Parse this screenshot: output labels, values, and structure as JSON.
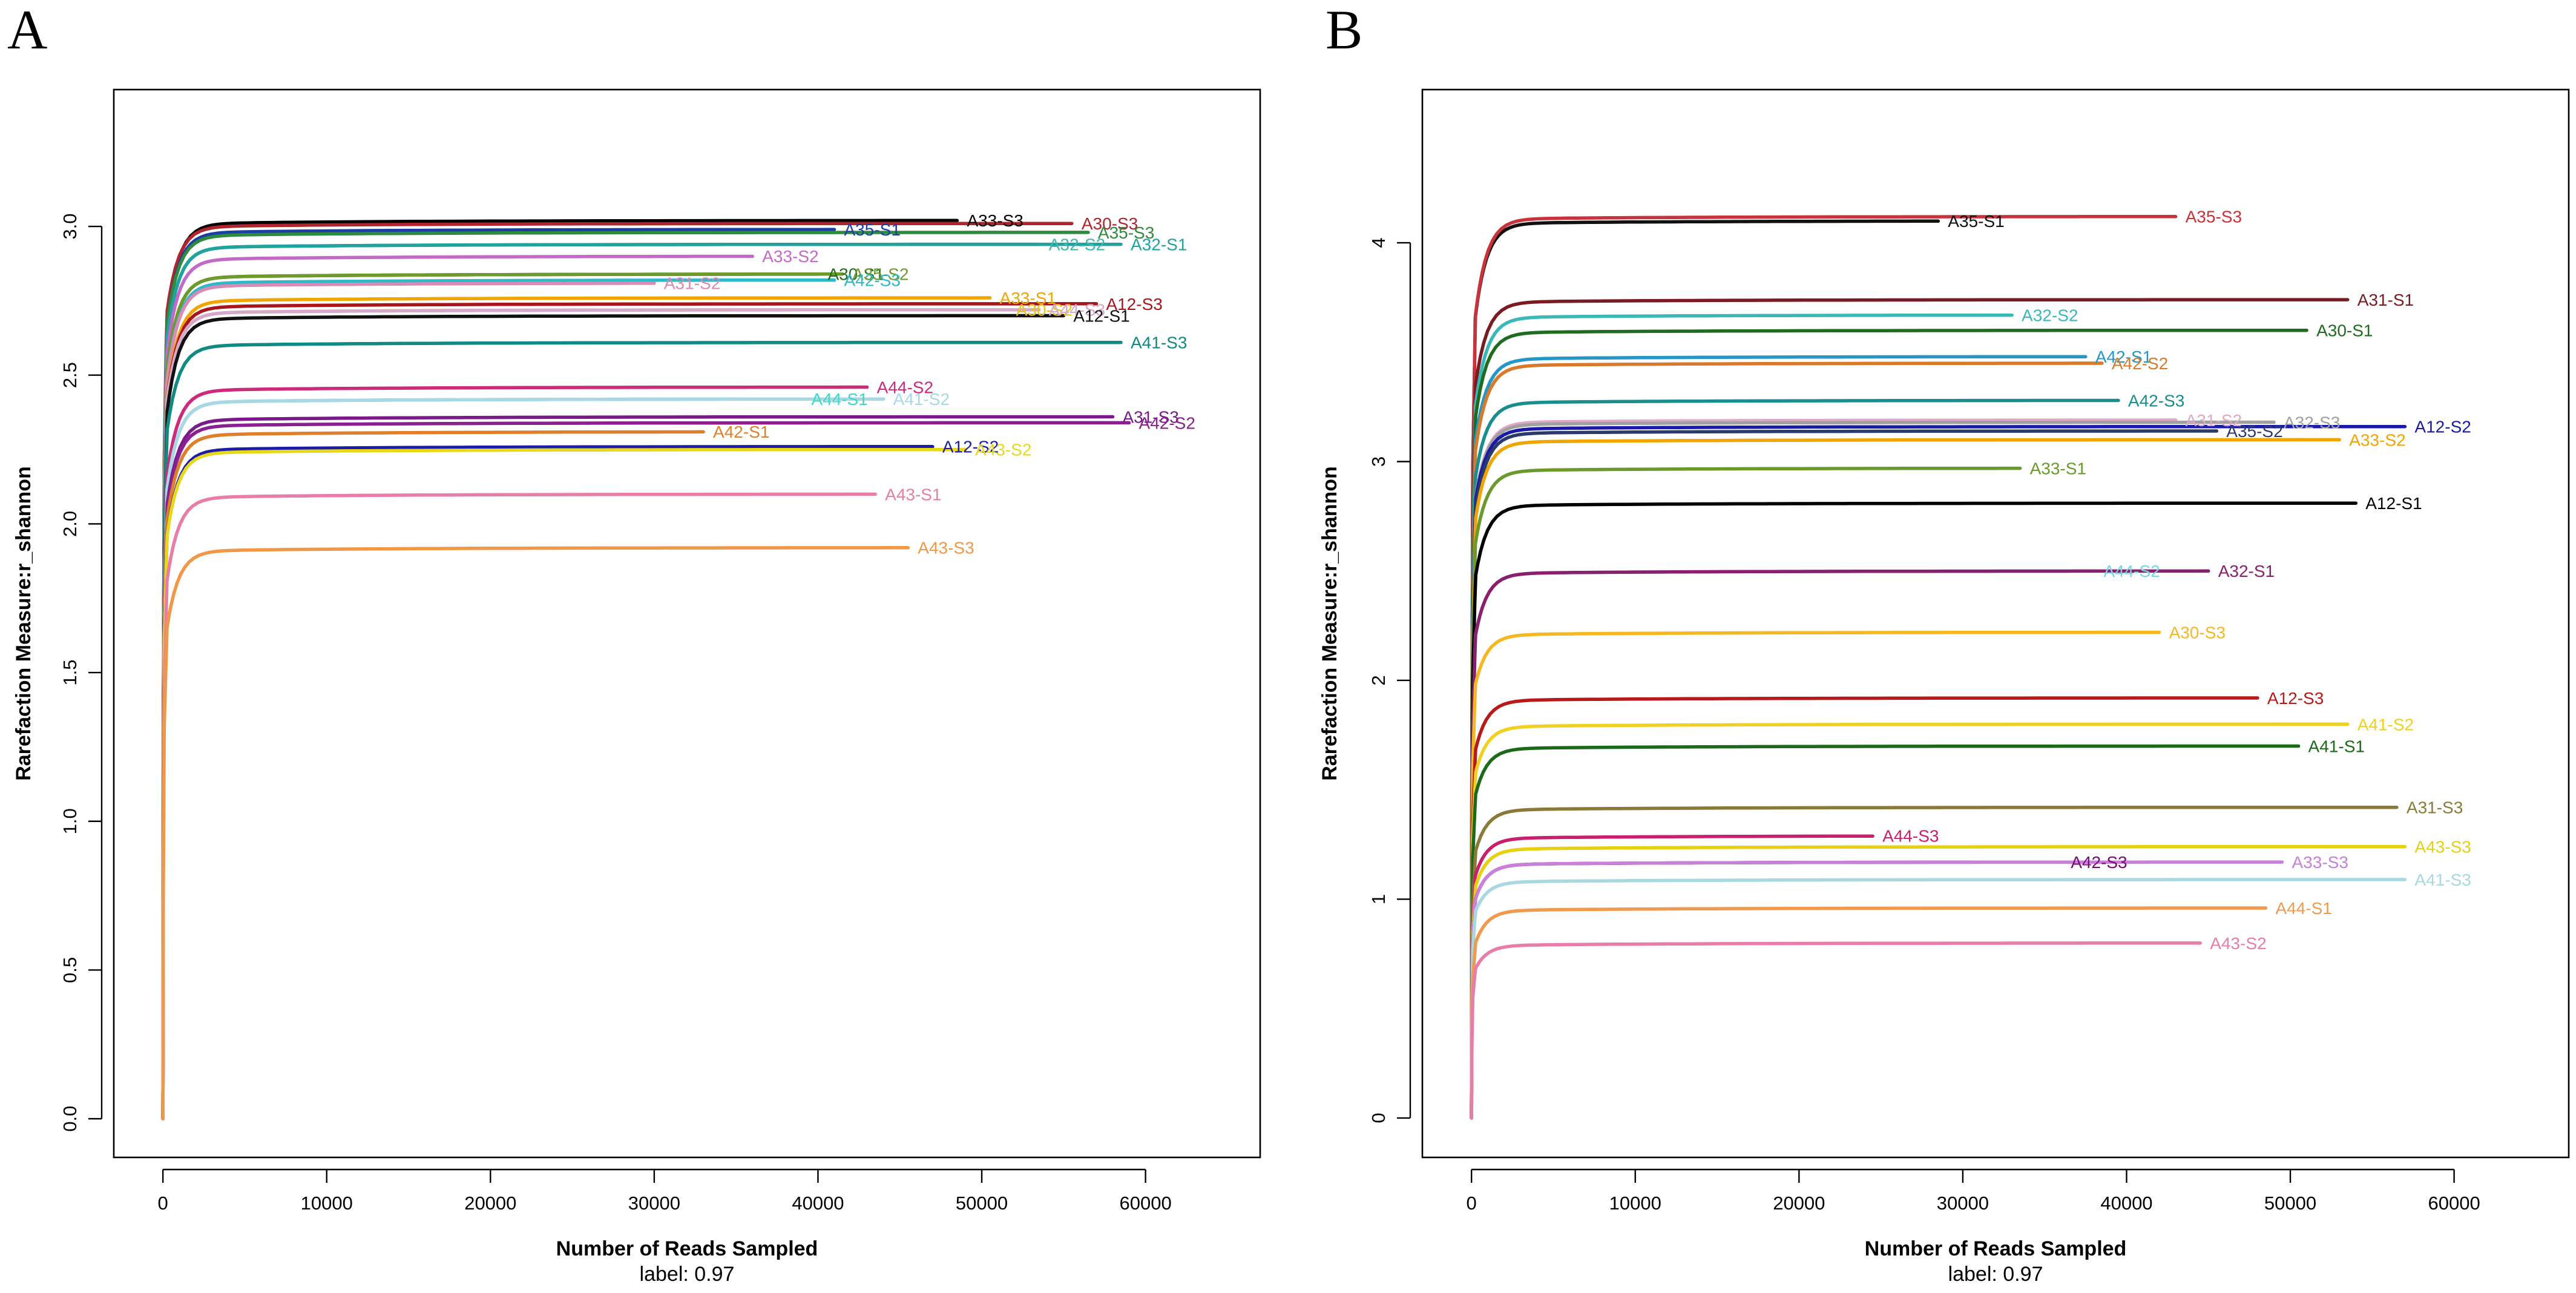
{
  "figure": {
    "panels": [
      {
        "letter": "A",
        "chart_data": {
          "type": "line",
          "title": "",
          "xlabel": "Number of Reads Sampled",
          "subtitle": "label: 0.97",
          "ylabel": "Rarefaction Measure:r_shannon",
          "xlim": [
            -3000,
            67000
          ],
          "ylim": [
            -0.13,
            3.46
          ],
          "xticks": [
            0,
            10000,
            20000,
            30000,
            40000,
            50000,
            60000
          ],
          "yticks": [
            0.0,
            0.5,
            1.0,
            1.5,
            2.0,
            2.5,
            3.0
          ],
          "ytick_labels": [
            "0.0",
            "0.5",
            "1.0",
            "1.5",
            "2.0",
            "2.5",
            "3.0"
          ],
          "grid": false,
          "series": [
            {
              "name": "A33-S3",
              "color": "#000000",
              "start": 2.55,
              "plateau": 3.02,
              "xmax": 48500
            },
            {
              "name": "A30-S3",
              "color": "#b0252d",
              "start": 2.6,
              "plateau": 3.01,
              "xmax": 55500
            },
            {
              "name": "A35-S1",
              "color": "#1a3da6",
              "start": 2.55,
              "plateau": 2.99,
              "xmax": 41000
            },
            {
              "name": "A35-S3",
              "color": "#2e8b3e",
              "start": 2.55,
              "plateau": 2.98,
              "xmax": 56500
            },
            {
              "name": "A32-S2",
              "color": "#3fb8b0",
              "start": 2.5,
              "plateau": 2.94,
              "xmax": 53500
            },
            {
              "name": "A32-S1",
              "color": "#20a39e",
              "start": 2.5,
              "plateau": 2.94,
              "xmax": 58500
            },
            {
              "name": "A33-S2",
              "color": "#c36ac9",
              "start": 2.45,
              "plateau": 2.9,
              "xmax": 36000
            },
            {
              "name": "A30-S1",
              "color": "#1f6e1f",
              "start": 2.4,
              "plateau": 2.84,
              "xmax": 40000
            },
            {
              "name": "A35-S2",
              "color": "#6e9a2c",
              "start": 2.4,
              "plateau": 2.84,
              "xmax": 41500
            },
            {
              "name": "A42-S3",
              "color": "#2fb8c8",
              "start": 2.35,
              "plateau": 2.82,
              "xmax": 41000
            },
            {
              "name": "A31-S2",
              "color": "#d98ab5",
              "start": 2.35,
              "plateau": 2.81,
              "xmax": 30000
            },
            {
              "name": "A33-S1",
              "color": "#f0a500",
              "start": 2.3,
              "plateau": 2.76,
              "xmax": 50500
            },
            {
              "name": "A12-S3",
              "color": "#a8161b",
              "start": 2.3,
              "plateau": 2.74,
              "xmax": 57000
            },
            {
              "name": "A30-S2",
              "color": "#e8c41a",
              "start": 2.3,
              "plateau": 2.72,
              "xmax": 51500
            },
            {
              "name": "A44-S3",
              "color": "#d6a8cc",
              "start": 2.3,
              "plateau": 2.72,
              "xmax": 53500
            },
            {
              "name": "A12-S1",
              "color": "#111111",
              "start": 2.25,
              "plateau": 2.7,
              "xmax": 55000
            },
            {
              "name": "A41-S3",
              "color": "#108a82",
              "start": 2.2,
              "plateau": 2.61,
              "xmax": 58500
            },
            {
              "name": "A44-S2",
              "color": "#cc2a7a",
              "start": 2.05,
              "plateau": 2.46,
              "xmax": 43000
            },
            {
              "name": "A44-S1",
              "color": "#40d6c8",
              "start": 2.0,
              "plateau": 2.42,
              "xmax": 39000
            },
            {
              "name": "A41-S2",
              "color": "#a8d8e6",
              "start": 2.0,
              "plateau": 2.42,
              "xmax": 44000
            },
            {
              "name": "A31-S3",
              "color": "#7a1a8a",
              "start": 1.95,
              "plateau": 2.36,
              "xmax": 58000
            },
            {
              "name": "A42-S2",
              "color": "#8a1f8f",
              "start": 1.95,
              "plateau": 2.34,
              "xmax": 59000
            },
            {
              "name": "A42-S1",
              "color": "#e07f2a",
              "start": 1.9,
              "plateau": 2.31,
              "xmax": 33000
            },
            {
              "name": "A12-S2",
              "color": "#1c1ca8",
              "start": 1.85,
              "plateau": 2.26,
              "xmax": 47000
            },
            {
              "name": "A43-S2",
              "color": "#e8d81a",
              "start": 1.85,
              "plateau": 2.25,
              "xmax": 49000
            },
            {
              "name": "A43-S1",
              "color": "#e87ea8",
              "start": 1.7,
              "plateau": 2.1,
              "xmax": 43500
            },
            {
              "name": "A43-S3",
              "color": "#f09848",
              "start": 1.55,
              "plateau": 1.92,
              "xmax": 45500
            }
          ]
        }
      },
      {
        "letter": "B",
        "chart_data": {
          "type": "line",
          "title": "",
          "xlabel": "Number of Reads Sampled",
          "subtitle": "label: 0.97",
          "ylabel": "Rarefaction Measure:r_shannon",
          "xlim": [
            -3000,
            67000
          ],
          "ylim": [
            -0.18,
            4.7
          ],
          "xticks": [
            0,
            10000,
            20000,
            30000,
            40000,
            50000,
            60000
          ],
          "yticks": [
            0,
            1,
            2,
            3,
            4
          ],
          "ytick_labels": [
            "0",
            "1",
            "2",
            "3",
            "4"
          ],
          "grid": false,
          "series": [
            {
              "name": "A35-S1",
              "color": "#111111",
              "start": 3.5,
              "plateau": 4.1,
              "xmax": 28500
            },
            {
              "name": "A35-S3",
              "color": "#c8323a",
              "start": 3.5,
              "plateau": 4.12,
              "xmax": 43000
            },
            {
              "name": "A31-S1",
              "color": "#7a1a22",
              "start": 3.2,
              "plateau": 3.74,
              "xmax": 53500
            },
            {
              "name": "A32-S2",
              "color": "#3ab8b8",
              "start": 3.1,
              "plateau": 3.67,
              "xmax": 33000
            },
            {
              "name": "A30-S1",
              "color": "#1f6b1f",
              "start": 3.05,
              "plateau": 3.6,
              "xmax": 51000
            },
            {
              "name": "A42-S1",
              "color": "#2596c8",
              "start": 2.95,
              "plateau": 3.48,
              "xmax": 37500
            },
            {
              "name": "A42-S2",
              "color": "#d87a2a",
              "start": 2.9,
              "plateau": 3.45,
              "xmax": 38500
            },
            {
              "name": "A42-S3",
              "color": "#1a8e8e",
              "start": 2.8,
              "plateau": 3.28,
              "xmax": 39500
            },
            {
              "name": "A31-S2",
              "color": "#e0a8c8",
              "start": 2.7,
              "plateau": 3.19,
              "xmax": 43000
            },
            {
              "name": "A32-S3",
              "color": "#a0a0a0",
              "start": 2.7,
              "plateau": 3.18,
              "xmax": 49000
            },
            {
              "name": "A12-S2",
              "color": "#1a1aa8",
              "start": 2.7,
              "plateau": 3.16,
              "xmax": 57000
            },
            {
              "name": "A35-S2",
              "color": "#2a3a6a",
              "start": 2.65,
              "plateau": 3.14,
              "xmax": 45500
            },
            {
              "name": "A33-S2",
              "color": "#f0a500",
              "start": 2.6,
              "plateau": 3.1,
              "xmax": 53000
            },
            {
              "name": "A33-S1",
              "color": "#6a9a2c",
              "start": 2.5,
              "plateau": 2.97,
              "xmax": 33500
            },
            {
              "name": "A12-S1",
              "color": "#000000",
              "start": 2.35,
              "plateau": 2.81,
              "xmax": 54000
            },
            {
              "name": "A44-S2",
              "color": "#7ad6e6",
              "start": 2.1,
              "plateau": 2.5,
              "xmax": 38000
            },
            {
              "name": "A32-S1",
              "color": "#8a1f6e",
              "start": 2.1,
              "plateau": 2.5,
              "xmax": 45000
            },
            {
              "name": "A30-S3",
              "color": "#f5b820",
              "start": 1.9,
              "plateau": 2.22,
              "xmax": 42000
            },
            {
              "name": "A12-S3",
              "color": "#b81a1a",
              "start": 1.6,
              "plateau": 1.92,
              "xmax": 48000
            },
            {
              "name": "A41-S2",
              "color": "#f0d020",
              "start": 1.5,
              "plateau": 1.8,
              "xmax": 53500
            },
            {
              "name": "A41-S1",
              "color": "#1a6a1a",
              "start": 1.4,
              "plateau": 1.7,
              "xmax": 50500
            },
            {
              "name": "A31-S3",
              "color": "#8a7a3a",
              "start": 1.15,
              "plateau": 1.42,
              "xmax": 56500
            },
            {
              "name": "A44-S3",
              "color": "#c8206e",
              "start": 1.05,
              "plateau": 1.29,
              "xmax": 24500
            },
            {
              "name": "A43-S3",
              "color": "#e6d010",
              "start": 1.0,
              "plateau": 1.24,
              "xmax": 57000
            },
            {
              "name": "A42-S3",
              "color": "#7a0a7a",
              "start": 0.95,
              "plateau": 1.17,
              "xmax": 36000
            },
            {
              "name": "A33-S3",
              "color": "#c880d8",
              "start": 0.95,
              "plateau": 1.17,
              "xmax": 49500
            },
            {
              "name": "A41-S3",
              "color": "#a8d8e0",
              "start": 0.9,
              "plateau": 1.09,
              "xmax": 57000
            },
            {
              "name": "A44-S1",
              "color": "#f09a50",
              "start": 0.75,
              "plateau": 0.96,
              "xmax": 48500
            },
            {
              "name": "A43-S2",
              "color": "#e87ea8",
              "start": 0.65,
              "plateau": 0.8,
              "xmax": 44500
            }
          ]
        }
      }
    ]
  }
}
